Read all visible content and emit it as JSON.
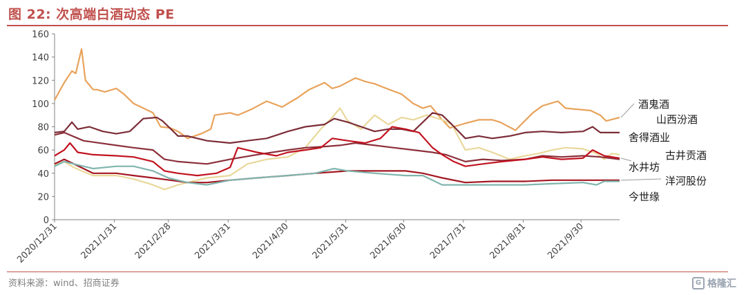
{
  "title": "图 22:  次高端白酒动态 PE",
  "source": "资料来源：wind、招商证券",
  "watermark": "格隆汇",
  "chart_data": {
    "type": "line",
    "title": "图 22:  次高端白酒动态 PE",
    "xlabel": "",
    "ylabel": "",
    "ylim": [
      0,
      160
    ],
    "yticks": [
      0,
      20,
      40,
      60,
      80,
      100,
      120,
      140,
      160
    ],
    "xlim": [
      "2020-12-31",
      "2021-10-20"
    ],
    "xticks": [
      "2020/12/31",
      "2021/1/31",
      "2021/2/28",
      "2021/3/31",
      "2021/4/30",
      "2021/5/31",
      "2021/6/30",
      "2021/7/31",
      "2021/8/31",
      "2021/9/30"
    ],
    "grid": false,
    "legend": "right (labels beside line ends)",
    "series": [
      {
        "name": "酒鬼酒",
        "color": "#e8a25a",
        "x": [
          "2020-12-31",
          "2021-01-05",
          "2021-01-09",
          "2021-01-11",
          "2021-01-13",
          "2021-01-14",
          "2021-01-16",
          "2021-01-18",
          "2021-01-20",
          "2021-01-22",
          "2021-01-26",
          "2021-02-01",
          "2021-02-05",
          "2021-02-10",
          "2021-02-20",
          "2021-02-24",
          "2021-03-01",
          "2021-03-05",
          "2021-03-10",
          "2021-03-17",
          "2021-03-22",
          "2021-03-24",
          "2021-04-01",
          "2021-04-05",
          "2021-04-12",
          "2021-04-20",
          "2021-04-28",
          "2021-05-06",
          "2021-05-12",
          "2021-05-20",
          "2021-05-24",
          "2021-05-28",
          "2021-06-05",
          "2021-06-10",
          "2021-06-15",
          "2021-06-21",
          "2021-06-29",
          "2021-07-05",
          "2021-07-10",
          "2021-07-14",
          "2021-07-20",
          "2021-07-24",
          "2021-08-01",
          "2021-08-08",
          "2021-08-15",
          "2021-08-19",
          "2021-08-27",
          "2021-09-05",
          "2021-09-10",
          "2021-09-18",
          "2021-09-22",
          "2021-10-05",
          "2021-10-10",
          "2021-10-13",
          "2021-10-20"
        ],
        "values": [
          103,
          118,
          128,
          126,
          140,
          147,
          120,
          116,
          112,
          112,
          110,
          113,
          108,
          100,
          92,
          80,
          79,
          76,
          70,
          74,
          78,
          90,
          92,
          90,
          95,
          102,
          97,
          105,
          112,
          118,
          113,
          115,
          122,
          119,
          117,
          113,
          108,
          100,
          96,
          98,
          86,
          79,
          83,
          86,
          86,
          84,
          77,
          92,
          98,
          102,
          96,
          94,
          90,
          85,
          88
        ]
      },
      {
        "name": "山西汾酒",
        "color": "#e9d89a",
        "x": [
          "2020-12-31",
          "2021-01-05",
          "2021-01-10",
          "2021-01-14",
          "2021-01-20",
          "2021-02-01",
          "2021-02-10",
          "2021-02-20",
          "2021-02-26",
          "2021-03-05",
          "2021-03-10",
          "2021-03-20",
          "2021-04-01",
          "2021-04-10",
          "2021-04-20",
          "2021-05-01",
          "2021-05-10",
          "2021-05-18",
          "2021-05-24",
          "2021-05-28",
          "2021-06-01",
          "2021-06-08",
          "2021-06-15",
          "2021-06-22",
          "2021-06-29",
          "2021-07-05",
          "2021-07-12",
          "2021-07-20",
          "2021-07-25",
          "2021-08-01",
          "2021-08-08",
          "2021-08-15",
          "2021-08-24",
          "2021-09-01",
          "2021-09-08",
          "2021-09-15",
          "2021-09-22",
          "2021-10-01",
          "2021-10-08",
          "2021-10-12",
          "2021-10-16",
          "2021-10-20"
        ],
        "values": [
          47,
          50,
          45,
          42,
          38,
          38,
          35,
          30,
          26,
          30,
          32,
          36,
          38,
          48,
          52,
          54,
          62,
          78,
          88,
          96,
          85,
          78,
          90,
          82,
          88,
          86,
          90,
          86,
          82,
          60,
          62,
          58,
          52,
          55,
          57,
          60,
          62,
          61,
          57,
          52,
          57,
          56
        ]
      },
      {
        "name": "舍得酒业",
        "color": "#7b2c37",
        "x": [
          "2020-12-31",
          "2021-01-05",
          "2021-01-09",
          "2021-01-12",
          "2021-01-18",
          "2021-01-25",
          "2021-02-01",
          "2021-02-08",
          "2021-02-15",
          "2021-02-22",
          "2021-02-25",
          "2021-03-05",
          "2021-03-10",
          "2021-03-20",
          "2021-04-01",
          "2021-04-10",
          "2021-04-20",
          "2021-05-01",
          "2021-05-10",
          "2021-05-20",
          "2021-05-25",
          "2021-06-01",
          "2021-06-08",
          "2021-06-15",
          "2021-06-22",
          "2021-06-29",
          "2021-07-05",
          "2021-07-10",
          "2021-07-15",
          "2021-07-20",
          "2021-07-25",
          "2021-08-01",
          "2021-08-08",
          "2021-08-15",
          "2021-08-24",
          "2021-09-01",
          "2021-09-10",
          "2021-09-20",
          "2021-10-01",
          "2021-10-06",
          "2021-10-10",
          "2021-10-20"
        ],
        "values": [
          75,
          76,
          84,
          78,
          80,
          76,
          74,
          76,
          87,
          88,
          85,
          72,
          72,
          68,
          66,
          68,
          70,
          76,
          80,
          82,
          87,
          84,
          80,
          76,
          78,
          78,
          76,
          84,
          92,
          90,
          82,
          70,
          72,
          70,
          72,
          75,
          76,
          75,
          76,
          80,
          75,
          75
        ]
      },
      {
        "name": "古井贡酒",
        "color": "#8b2f3a",
        "x": [
          "2020-12-31",
          "2021-01-05",
          "2021-01-15",
          "2021-02-01",
          "2021-02-10",
          "2021-02-20",
          "2021-02-26",
          "2021-03-05",
          "2021-03-20",
          "2021-04-01",
          "2021-04-15",
          "2021-05-01",
          "2021-05-10",
          "2021-05-20",
          "2021-05-28",
          "2021-06-05",
          "2021-06-15",
          "2021-06-25",
          "2021-07-05",
          "2021-07-15",
          "2021-07-22",
          "2021-08-01",
          "2021-08-10",
          "2021-08-20",
          "2021-09-01",
          "2021-09-10",
          "2021-09-20",
          "2021-10-01",
          "2021-10-10",
          "2021-10-20"
        ],
        "values": [
          73,
          75,
          68,
          64,
          62,
          60,
          52,
          50,
          48,
          52,
          56,
          60,
          62,
          63,
          64,
          66,
          64,
          62,
          60,
          58,
          56,
          50,
          52,
          51,
          52,
          55,
          54,
          55,
          54,
          52
        ]
      },
      {
        "name": "水井坊",
        "color": "#c1121f",
        "x": [
          "2020-12-31",
          "2021-01-05",
          "2021-01-08",
          "2021-01-12",
          "2021-01-20",
          "2021-02-01",
          "2021-02-10",
          "2021-02-20",
          "2021-02-26",
          "2021-03-05",
          "2021-03-15",
          "2021-03-25",
          "2021-04-01",
          "2021-04-05",
          "2021-04-15",
          "2021-04-25",
          "2021-05-01",
          "2021-05-10",
          "2021-05-18",
          "2021-05-24",
          "2021-06-01",
          "2021-06-10",
          "2021-06-18",
          "2021-06-24",
          "2021-07-01",
          "2021-07-08",
          "2021-07-15",
          "2021-07-20",
          "2021-07-26",
          "2021-08-01",
          "2021-08-10",
          "2021-08-20",
          "2021-09-01",
          "2021-09-10",
          "2021-09-20",
          "2021-10-01",
          "2021-10-06",
          "2021-10-12",
          "2021-10-20"
        ],
        "values": [
          55,
          60,
          66,
          58,
          56,
          55,
          54,
          50,
          42,
          40,
          38,
          40,
          45,
          62,
          58,
          55,
          58,
          60,
          62,
          70,
          68,
          66,
          70,
          80,
          78,
          75,
          62,
          56,
          50,
          46,
          48,
          50,
          52,
          54,
          52,
          53,
          60,
          55,
          53
        ]
      },
      {
        "name": "洋河股份",
        "color": "#a31621",
        "x": [
          "2020-12-31",
          "2021-01-05",
          "2021-01-10",
          "2021-01-20",
          "2021-02-01",
          "2021-02-10",
          "2021-02-20",
          "2021-03-01",
          "2021-03-10",
          "2021-03-20",
          "2021-04-01",
          "2021-04-15",
          "2021-05-01",
          "2021-05-15",
          "2021-06-01",
          "2021-06-15",
          "2021-07-01",
          "2021-07-10",
          "2021-07-20",
          "2021-08-01",
          "2021-08-15",
          "2021-09-01",
          "2021-09-15",
          "2021-10-01",
          "2021-10-10",
          "2021-10-20"
        ],
        "values": [
          48,
          52,
          48,
          40,
          40,
          38,
          36,
          34,
          32,
          32,
          34,
          36,
          38,
          40,
          42,
          42,
          42,
          40,
          36,
          32,
          33,
          33,
          34,
          34,
          34,
          34
        ]
      },
      {
        "name": "今世缘",
        "color": "#7fb5ad",
        "x": [
          "2020-12-31",
          "2021-01-05",
          "2021-01-10",
          "2021-01-20",
          "2021-02-01",
          "2021-02-10",
          "2021-02-20",
          "2021-02-28",
          "2021-03-10",
          "2021-03-20",
          "2021-04-01",
          "2021-04-15",
          "2021-05-01",
          "2021-05-15",
          "2021-05-25",
          "2021-06-01",
          "2021-06-15",
          "2021-07-01",
          "2021-07-10",
          "2021-07-20",
          "2021-08-01",
          "2021-08-15",
          "2021-09-01",
          "2021-09-15",
          "2021-10-01",
          "2021-10-08",
          "2021-10-12",
          "2021-10-20"
        ],
        "values": [
          46,
          50,
          48,
          44,
          46,
          46,
          42,
          36,
          32,
          30,
          34,
          36,
          38,
          40,
          44,
          42,
          40,
          38,
          38,
          30,
          30,
          30,
          30,
          31,
          32,
          30,
          33,
          33
        ]
      }
    ]
  }
}
